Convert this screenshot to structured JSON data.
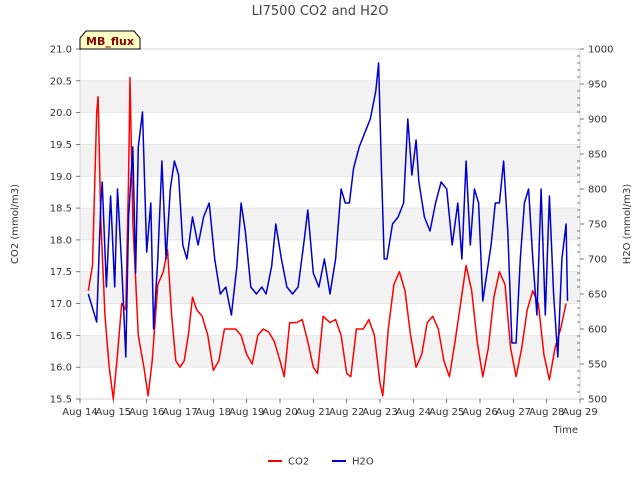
{
  "chart_data": {
    "type": "line",
    "title": "LI7500 CO2 and H2O",
    "xlabel": "Time",
    "ylabel_left": "CO2 (mmol/m3)",
    "ylabel_right": "H2O (mmol/m3)",
    "annotation": "MB_flux",
    "x_range": [
      "2000-08-14",
      "2000-08-29"
    ],
    "y_left_range": [
      15.5,
      21.0
    ],
    "y_right_range": [
      500,
      1000
    ],
    "x_ticks": [
      "Aug 14",
      "Aug 15",
      "Aug 16",
      "Aug 17",
      "Aug 18",
      "Aug 19",
      "Aug 20",
      "Aug 21",
      "Aug 22",
      "Aug 23",
      "Aug 24",
      "Aug 25",
      "Aug 26",
      "Aug 27",
      "Aug 28",
      "Aug 29"
    ],
    "y_left_ticks": [
      "15.5",
      "16.0",
      "16.5",
      "17.0",
      "17.5",
      "18.0",
      "18.5",
      "19.0",
      "19.5",
      "20.0",
      "20.5",
      "21.0"
    ],
    "y_right_ticks": [
      "500",
      "550",
      "600",
      "650",
      "700",
      "750",
      "800",
      "850",
      "900",
      "950",
      "1000"
    ],
    "legend_position": "bottom-center",
    "grid": "horizontal bands",
    "series": [
      {
        "name": "CO2",
        "axis": "left",
        "color": "#ff0000",
        "points": [
          [
            "2000-08-14 06:00",
            17.2
          ],
          [
            "2000-08-14 09:00",
            17.6
          ],
          [
            "2000-08-14 12:00",
            20.0
          ],
          [
            "2000-08-14 13:00",
            20.25
          ],
          [
            "2000-08-14 15:00",
            18.3
          ],
          [
            "2000-08-14 18:00",
            16.8
          ],
          [
            "2000-08-14 21:00",
            16.0
          ],
          [
            "2000-08-15 00:00",
            15.5
          ],
          [
            "2000-08-15 03:00",
            16.2
          ],
          [
            "2000-08-15 06:00",
            17.0
          ],
          [
            "2000-08-15 09:00",
            16.9
          ],
          [
            "2000-08-15 11:00",
            19.0
          ],
          [
            "2000-08-15 12:00",
            20.55
          ],
          [
            "2000-08-15 14:00",
            18.3
          ],
          [
            "2000-08-15 18:00",
            16.5
          ],
          [
            "2000-08-15 22:00",
            16.0
          ],
          [
            "2000-08-16 01:00",
            15.55
          ],
          [
            "2000-08-16 04:00",
            16.1
          ],
          [
            "2000-08-16 08:00",
            17.3
          ],
          [
            "2000-08-16 12:00",
            17.5
          ],
          [
            "2000-08-16 15:00",
            17.85
          ],
          [
            "2000-08-16 18:00",
            16.8
          ],
          [
            "2000-08-16 21:00",
            16.1
          ],
          [
            "2000-08-17 00:00",
            16.0
          ],
          [
            "2000-08-17 03:00",
            16.1
          ],
          [
            "2000-08-17 06:00",
            16.5
          ],
          [
            "2000-08-17 09:00",
            17.1
          ],
          [
            "2000-08-17 12:00",
            16.9
          ],
          [
            "2000-08-17 16:00",
            16.8
          ],
          [
            "2000-08-17 20:00",
            16.5
          ],
          [
            "2000-08-18 00:00",
            15.95
          ],
          [
            "2000-08-18 04:00",
            16.1
          ],
          [
            "2000-08-18 08:00",
            16.6
          ],
          [
            "2000-08-18 12:00",
            16.6
          ],
          [
            "2000-08-18 16:00",
            16.6
          ],
          [
            "2000-08-18 20:00",
            16.5
          ],
          [
            "2000-08-19 00:00",
            16.2
          ],
          [
            "2000-08-19 04:00",
            16.05
          ],
          [
            "2000-08-19 08:00",
            16.5
          ],
          [
            "2000-08-19 12:00",
            16.6
          ],
          [
            "2000-08-19 16:00",
            16.55
          ],
          [
            "2000-08-19 20:00",
            16.4
          ],
          [
            "2000-08-20 00:00",
            16.1
          ],
          [
            "2000-08-20 03:00",
            15.85
          ],
          [
            "2000-08-20 07:00",
            16.7
          ],
          [
            "2000-08-20 12:00",
            16.7
          ],
          [
            "2000-08-20 16:00",
            16.75
          ],
          [
            "2000-08-20 20:00",
            16.4
          ],
          [
            "2000-08-21 00:00",
            16.0
          ],
          [
            "2000-08-21 03:00",
            15.9
          ],
          [
            "2000-08-21 07:00",
            16.8
          ],
          [
            "2000-08-21 12:00",
            16.7
          ],
          [
            "2000-08-21 16:00",
            16.75
          ],
          [
            "2000-08-21 20:00",
            16.5
          ],
          [
            "2000-08-22 00:00",
            15.9
          ],
          [
            "2000-08-22 03:00",
            15.85
          ],
          [
            "2000-08-22 07:00",
            16.6
          ],
          [
            "2000-08-22 12:00",
            16.6
          ],
          [
            "2000-08-22 16:00",
            16.75
          ],
          [
            "2000-08-22 20:00",
            16.5
          ],
          [
            "2000-08-23 00:00",
            15.75
          ],
          [
            "2000-08-23 02:00",
            15.55
          ],
          [
            "2000-08-23 06:00",
            16.6
          ],
          [
            "2000-08-23 10:00",
            17.3
          ],
          [
            "2000-08-23 14:00",
            17.5
          ],
          [
            "2000-08-23 18:00",
            17.2
          ],
          [
            "2000-08-23 22:00",
            16.5
          ],
          [
            "2000-08-24 02:00",
            16.0
          ],
          [
            "2000-08-24 06:00",
            16.2
          ],
          [
            "2000-08-24 10:00",
            16.7
          ],
          [
            "2000-08-24 14:00",
            16.8
          ],
          [
            "2000-08-24 18:00",
            16.6
          ],
          [
            "2000-08-24 22:00",
            16.1
          ],
          [
            "2000-08-25 02:00",
            15.85
          ],
          [
            "2000-08-25 06:00",
            16.4
          ],
          [
            "2000-08-25 10:00",
            17.0
          ],
          [
            "2000-08-25 14:00",
            17.6
          ],
          [
            "2000-08-25 18:00",
            17.2
          ],
          [
            "2000-08-25 22:00",
            16.4
          ],
          [
            "2000-08-26 02:00",
            15.85
          ],
          [
            "2000-08-26 06:00",
            16.3
          ],
          [
            "2000-08-26 10:00",
            17.1
          ],
          [
            "2000-08-26 14:00",
            17.5
          ],
          [
            "2000-08-26 18:00",
            17.3
          ],
          [
            "2000-08-26 22:00",
            16.3
          ],
          [
            "2000-08-27 02:00",
            15.85
          ],
          [
            "2000-08-27 06:00",
            16.3
          ],
          [
            "2000-08-27 10:00",
            16.9
          ],
          [
            "2000-08-27 14:00",
            17.2
          ],
          [
            "2000-08-27 18:00",
            17.0
          ],
          [
            "2000-08-27 22:00",
            16.2
          ],
          [
            "2000-08-28 02:00",
            15.8
          ],
          [
            "2000-08-28 06:00",
            16.3
          ],
          [
            "2000-08-28 10:00",
            16.6
          ],
          [
            "2000-08-28 14:00",
            17.0
          ]
        ]
      },
      {
        "name": "H2O",
        "axis": "right",
        "color": "#0000cc",
        "points": [
          [
            "2000-08-14 06:00",
            650
          ],
          [
            "2000-08-14 09:00",
            630
          ],
          [
            "2000-08-14 12:00",
            610
          ],
          [
            "2000-08-14 15:00",
            780
          ],
          [
            "2000-08-14 16:00",
            810
          ],
          [
            "2000-08-14 19:00",
            660
          ],
          [
            "2000-08-14 22:00",
            790
          ],
          [
            "2000-08-15 01:00",
            660
          ],
          [
            "2000-08-15 03:00",
            800
          ],
          [
            "2000-08-15 06:00",
            690
          ],
          [
            "2000-08-15 09:00",
            560
          ],
          [
            "2000-08-15 11:00",
            760
          ],
          [
            "2000-08-15 14:00",
            860
          ],
          [
            "2000-08-15 16:00",
            680
          ],
          [
            "2000-08-15 18:00",
            860
          ],
          [
            "2000-08-15 21:00",
            910
          ],
          [
            "2000-08-16 00:00",
            710
          ],
          [
            "2000-08-16 03:00",
            780
          ],
          [
            "2000-08-16 05:00",
            600
          ],
          [
            "2000-08-16 08:00",
            700
          ],
          [
            "2000-08-16 11:00",
            840
          ],
          [
            "2000-08-16 14:00",
            700
          ],
          [
            "2000-08-16 17:00",
            800
          ],
          [
            "2000-08-16 20:00",
            840
          ],
          [
            "2000-08-16 23:00",
            820
          ],
          [
            "2000-08-17 02:00",
            720
          ],
          [
            "2000-08-17 05:00",
            700
          ],
          [
            "2000-08-17 09:00",
            760
          ],
          [
            "2000-08-17 13:00",
            720
          ],
          [
            "2000-08-17 17:00",
            760
          ],
          [
            "2000-08-17 21:00",
            780
          ],
          [
            "2000-08-18 01:00",
            700
          ],
          [
            "2000-08-18 05:00",
            650
          ],
          [
            "2000-08-18 09:00",
            660
          ],
          [
            "2000-08-18 13:00",
            620
          ],
          [
            "2000-08-18 17:00",
            690
          ],
          [
            "2000-08-18 20:00",
            780
          ],
          [
            "2000-08-18 23:00",
            740
          ],
          [
            "2000-08-19 03:00",
            660
          ],
          [
            "2000-08-19 07:00",
            650
          ],
          [
            "2000-08-19 11:00",
            660
          ],
          [
            "2000-08-19 14:00",
            650
          ],
          [
            "2000-08-19 18:00",
            690
          ],
          [
            "2000-08-19 21:00",
            750
          ],
          [
            "2000-08-20 01:00",
            700
          ],
          [
            "2000-08-20 05:00",
            660
          ],
          [
            "2000-08-20 09:00",
            650
          ],
          [
            "2000-08-20 13:00",
            660
          ],
          [
            "2000-08-20 17:00",
            720
          ],
          [
            "2000-08-20 20:00",
            770
          ],
          [
            "2000-08-21 00:00",
            680
          ],
          [
            "2000-08-21 04:00",
            660
          ],
          [
            "2000-08-21 08:00",
            700
          ],
          [
            "2000-08-21 12:00",
            650
          ],
          [
            "2000-08-21 16:00",
            700
          ],
          [
            "2000-08-21 20:00",
            800
          ],
          [
            "2000-08-21 23:00",
            780
          ],
          [
            "2000-08-22 02:00",
            780
          ],
          [
            "2000-08-22 05:00",
            830
          ],
          [
            "2000-08-22 09:00",
            860
          ],
          [
            "2000-08-22 13:00",
            880
          ],
          [
            "2000-08-22 17:00",
            900
          ],
          [
            "2000-08-22 21:00",
            940
          ],
          [
            "2000-08-22 23:00",
            980
          ],
          [
            "2000-08-23 01:00",
            830
          ],
          [
            "2000-08-23 03:00",
            700
          ],
          [
            "2000-08-23 05:00",
            700
          ],
          [
            "2000-08-23 09:00",
            750
          ],
          [
            "2000-08-23 13:00",
            760
          ],
          [
            "2000-08-23 17:00",
            780
          ],
          [
            "2000-08-23 20:00",
            900
          ],
          [
            "2000-08-23 23:00",
            820
          ],
          [
            "2000-08-24 02:00",
            870
          ],
          [
            "2000-08-24 04:00",
            810
          ],
          [
            "2000-08-24 08:00",
            760
          ],
          [
            "2000-08-24 12:00",
            740
          ],
          [
            "2000-08-24 16:00",
            780
          ],
          [
            "2000-08-24 20:00",
            810
          ],
          [
            "2000-08-25 00:00",
            800
          ],
          [
            "2000-08-25 04:00",
            720
          ],
          [
            "2000-08-25 08:00",
            780
          ],
          [
            "2000-08-25 11:00",
            700
          ],
          [
            "2000-08-25 14:00",
            840
          ],
          [
            "2000-08-25 17:00",
            720
          ],
          [
            "2000-08-25 20:00",
            800
          ],
          [
            "2000-08-25 23:00",
            780
          ],
          [
            "2000-08-26 02:00",
            640
          ],
          [
            "2000-08-26 05:00",
            680
          ],
          [
            "2000-08-26 08:00",
            720
          ],
          [
            "2000-08-26 11:00",
            780
          ],
          [
            "2000-08-26 14:00",
            780
          ],
          [
            "2000-08-26 17:00",
            840
          ],
          [
            "2000-08-26 20:00",
            740
          ],
          [
            "2000-08-26 23:00",
            580
          ],
          [
            "2000-08-27 02:00",
            580
          ],
          [
            "2000-08-27 05:00",
            700
          ],
          [
            "2000-08-27 08:00",
            780
          ],
          [
            "2000-08-27 11:00",
            800
          ],
          [
            "2000-08-27 14:00",
            700
          ],
          [
            "2000-08-27 17:00",
            620
          ],
          [
            "2000-08-27 20:00",
            800
          ],
          [
            "2000-08-27 23:00",
            620
          ],
          [
            "2000-08-28 02:00",
            790
          ],
          [
            "2000-08-28 05:00",
            650
          ],
          [
            "2000-08-28 08:00",
            560
          ],
          [
            "2000-08-28 11:00",
            700
          ],
          [
            "2000-08-28 14:00",
            750
          ],
          [
            "2000-08-28 15:00",
            640
          ]
        ]
      }
    ]
  }
}
